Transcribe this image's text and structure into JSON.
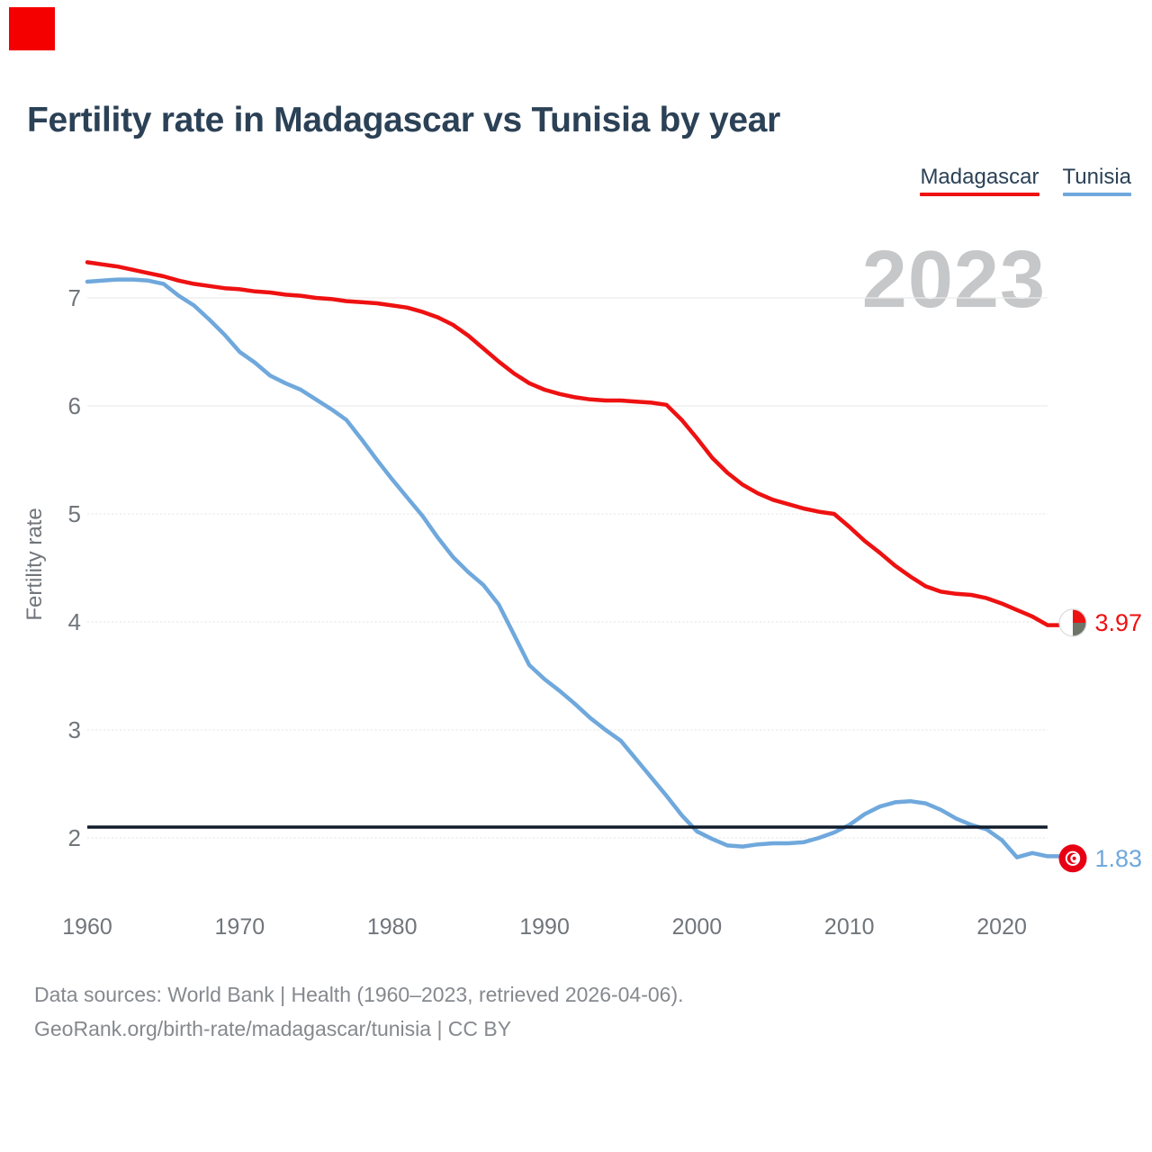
{
  "page": {
    "title": "Fertility rate in Madagascar vs Tunisia by year",
    "background": "#ffffff",
    "corner_marker_color": "#f40000"
  },
  "legend": {
    "position": "top-right",
    "items": [
      {
        "label": "Madagascar",
        "color": "#ee1111"
      },
      {
        "label": "Tunisia",
        "color": "#6fa8dc"
      }
    ]
  },
  "watermark": "2023",
  "chart_data": {
    "type": "line",
    "title": "Fertility rate in Madagascar vs Tunisia by year",
    "xlabel": "",
    "ylabel": "Fertility rate",
    "grid": true,
    "xlim": [
      1960,
      2023
    ],
    "ylim": [
      1.7,
      7.45
    ],
    "xticks": [
      1960,
      1970,
      1980,
      1990,
      2000,
      2010,
      2020
    ],
    "yticks": [
      2,
      3,
      4,
      5,
      6,
      7
    ],
    "tick_color": "#70757b",
    "grid_color": "#ececec",
    "reference_line": {
      "value": 2.1,
      "color": "#101c2c"
    },
    "x": [
      1960,
      1961,
      1962,
      1963,
      1964,
      1965,
      1966,
      1967,
      1968,
      1969,
      1970,
      1971,
      1972,
      1973,
      1974,
      1975,
      1976,
      1977,
      1978,
      1979,
      1980,
      1981,
      1982,
      1983,
      1984,
      1985,
      1986,
      1987,
      1988,
      1989,
      1990,
      1991,
      1992,
      1993,
      1994,
      1995,
      1996,
      1997,
      1998,
      1999,
      2000,
      2001,
      2002,
      2003,
      2004,
      2005,
      2006,
      2007,
      2008,
      2009,
      2010,
      2011,
      2012,
      2013,
      2014,
      2015,
      2016,
      2017,
      2018,
      2019,
      2020,
      2021,
      2022,
      2023
    ],
    "series": [
      {
        "name": "Madagascar",
        "color": "#ee1111",
        "end_label": "3.97",
        "flag": "madagascar-flag-icon",
        "flag_colors": [
          "#ffffff",
          "#ee1111",
          "#6e7468"
        ],
        "values": [
          7.33,
          7.31,
          7.29,
          7.26,
          7.23,
          7.2,
          7.16,
          7.13,
          7.11,
          7.09,
          7.08,
          7.06,
          7.05,
          7.03,
          7.02,
          7.0,
          6.99,
          6.97,
          6.96,
          6.95,
          6.93,
          6.91,
          6.87,
          6.82,
          6.75,
          6.65,
          6.53,
          6.41,
          6.3,
          6.21,
          6.15,
          6.11,
          6.08,
          6.06,
          6.05,
          6.05,
          6.04,
          6.03,
          6.01,
          5.87,
          5.7,
          5.52,
          5.38,
          5.27,
          5.19,
          5.13,
          5.09,
          5.05,
          5.02,
          5.0,
          4.88,
          4.75,
          4.64,
          4.52,
          4.42,
          4.33,
          4.28,
          4.26,
          4.25,
          4.22,
          4.17,
          4.11,
          4.05,
          3.97
        ]
      },
      {
        "name": "Tunisia",
        "color": "#6fa8dc",
        "end_label": "1.83",
        "flag": "tunisia-flag-icon",
        "flag_colors": [
          "#e70013",
          "#ffffff"
        ],
        "values": [
          7.15,
          7.16,
          7.17,
          7.17,
          7.16,
          7.13,
          7.02,
          6.93,
          6.8,
          6.66,
          6.5,
          6.4,
          6.28,
          6.21,
          6.15,
          6.06,
          5.97,
          5.87,
          5.69,
          5.5,
          5.32,
          5.15,
          4.98,
          4.78,
          4.6,
          4.46,
          4.34,
          4.16,
          3.88,
          3.6,
          3.47,
          3.36,
          3.24,
          3.11,
          3.0,
          2.9,
          2.73,
          2.56,
          2.39,
          2.21,
          2.06,
          1.99,
          1.93,
          1.92,
          1.94,
          1.95,
          1.95,
          1.96,
          2.0,
          2.05,
          2.12,
          2.22,
          2.29,
          2.33,
          2.34,
          2.32,
          2.26,
          2.18,
          2.12,
          2.08,
          1.98,
          1.82,
          1.86,
          1.83
        ]
      }
    ]
  },
  "footer": {
    "line1": "Data sources: World Bank | Health (1960–2023, retrieved 2026-04-06).",
    "line2": "GeoRank.org/birth-rate/madagascar/tunisia | CC BY"
  }
}
